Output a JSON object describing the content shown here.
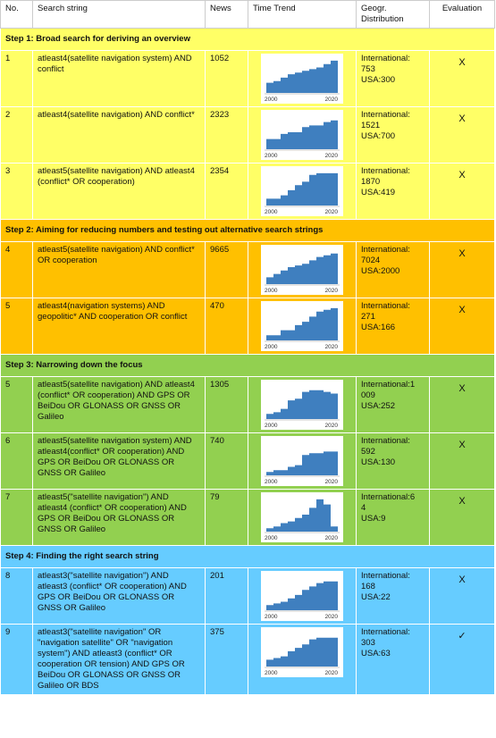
{
  "headers": {
    "no": "No.",
    "search": "Search string",
    "news": "News",
    "trend": "Time Trend",
    "geo": "Geogr. Distribution",
    "eval": "Evaluation"
  },
  "axis_labels": {
    "start": "2000",
    "end": "2020"
  },
  "colors": {
    "yellow": "#ffff66",
    "orange": "#ffc000",
    "green": "#92d050",
    "blue": "#66ccff",
    "area": "#3f7fbf"
  },
  "steps": [
    {
      "title": "Step 1: Broad search for deriving an overview",
      "color": "yellow",
      "rows": [
        {
          "no": "1",
          "search": "atleast4(satellite navigation system) AND conflict",
          "news": "1052",
          "geo_line1": "International:",
          "geo_line2": "753",
          "geo_line3": "USA:300",
          "eval": "X",
          "trend_shape": 0
        },
        {
          "no": "2",
          "search": "atleast4(satellite navigation) AND conflict*",
          "news": "2323",
          "geo_line1": "International:",
          "geo_line2": "1521",
          "geo_line3": "USA:700",
          "eval": "X",
          "trend_shape": 1
        },
        {
          "no": "3",
          "search": "atleast5(satellite navigation) AND atleast4 (conflict* OR cooperation)",
          "news": "2354",
          "geo_line1": "International:",
          "geo_line2": "1870",
          "geo_line3": "USA:419",
          "eval": "X",
          "trend_shape": 2
        }
      ]
    },
    {
      "title": "Step 2: Aiming for reducing numbers and testing out alternative search strings",
      "color": "orange",
      "rows": [
        {
          "no": "4",
          "search": "atleast5(satellite navigation) AND conflict* OR cooperation",
          "news": "9665",
          "geo_line1": "International:",
          "geo_line2": "7024",
          "geo_line3": "USA:2000",
          "eval": "X",
          "trend_shape": 3
        },
        {
          "no": "5",
          "search": "atleast4(navigation systems) AND geopolitic* AND cooperation OR conflict",
          "news": "470",
          "geo_line1": "International:",
          "geo_line2": "271",
          "geo_line3": "USA:166",
          "eval": "X",
          "trend_shape": 4
        }
      ]
    },
    {
      "title": "Step 3: Narrowing down the focus",
      "color": "green",
      "rows": [
        {
          "no": "5",
          "search": "atleast5(satellite navigation) AND atleast4 (conflict* OR cooperation) AND GPS OR BeiDou OR GLONASS OR GNSS OR Galileo",
          "news": "1305",
          "geo_line1": "International:1",
          "geo_line2": "009",
          "geo_line3": "USA:252",
          "eval": "X",
          "trend_shape": 5
        },
        {
          "no": "6",
          "search": "atleast5(satellite navigation system) AND atleast4(conflict* OR cooperation) AND GPS OR BeiDou OR GLONASS OR GNSS OR Galileo",
          "news": "740",
          "geo_line1": "International:",
          "geo_line2": "592",
          "geo_line3": "USA:130",
          "eval": "X",
          "trend_shape": 6
        },
        {
          "no": "7",
          "search": "atleast5(\"satellite navigation\") AND atleast4 (conflict* OR cooperation) AND GPS OR BeiDou OR GLONASS OR GNSS OR Galileo",
          "news": "79",
          "geo_line1": "International:6",
          "geo_line2": "4",
          "geo_line3": "USA:9",
          "eval": "X",
          "trend_shape": 7
        }
      ]
    },
    {
      "title": "Step 4: Finding the right search string",
      "color": "blue",
      "rows": [
        {
          "no": "8",
          "search": "atleast3(\"satellite navigation\") AND atleast3 (conflict* OR cooperation) AND GPS OR BeiDou OR GLONASS OR GNSS OR Galileo",
          "news": "201",
          "geo_line1": "International:",
          "geo_line2": "168",
          "geo_line3": "USA:22",
          "eval": "X",
          "trend_shape": 8
        },
        {
          "no": "9",
          "search": "atleast3(\"satellite navigation\" OR \"navigation satellite\" OR \"navigation system\") AND atleast3 (conflict* OR cooperation OR tension) AND GPS OR BeiDou OR GLONASS OR GNSS OR Galileo OR BDS",
          "news": "375",
          "geo_line1": "International:",
          "geo_line2": "303",
          "geo_line3": "USA:63",
          "eval": "✓",
          "trend_shape": 9
        }
      ]
    }
  ]
}
